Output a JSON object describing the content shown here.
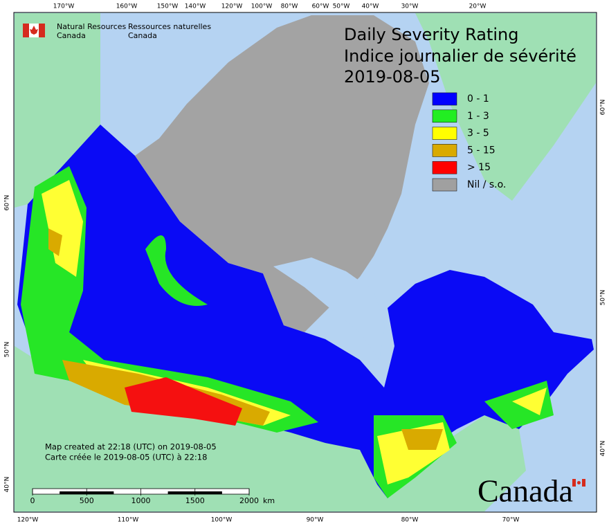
{
  "header": {
    "agency_en": [
      "Natural Resources",
      "Canada"
    ],
    "agency_fr": [
      "Ressources naturelles",
      "Canada"
    ]
  },
  "title": [
    "Daily Severity Rating",
    "Indice journalier de sévérité",
    "2019-08-05"
  ],
  "legend": [
    {
      "label": "0 - 1",
      "color": "#0000ff"
    },
    {
      "label": "1 - 3",
      "color": "#22ee22"
    },
    {
      "label": "3 - 5",
      "color": "#ffff00"
    },
    {
      "label": "5 - 15",
      "color": "#d9aa00"
    },
    {
      "label": "> 15",
      "color": "#ff0000"
    },
    {
      "label": "Nil / s.o.",
      "color": "#a0a0a0"
    }
  ],
  "graticule": {
    "top": [
      "170°W",
      "160°W",
      "150°W",
      "140°W",
      "120°W",
      "100°W",
      "80°W",
      "60°W",
      "50°W",
      "40°W",
      "30°W",
      "20°W"
    ],
    "bottom": [
      "120°W",
      "110°W",
      "100°W",
      "90°W",
      "80°W",
      "70°W"
    ],
    "left": [
      "60°N",
      "50°N",
      "40°N"
    ],
    "right": [
      "60°N",
      "50°N",
      "40°N"
    ]
  },
  "notes": [
    "Map created at 22:18 (UTC) on 2019-08-05",
    "Carte créée le 2019-08-05 (UTC) à 22:18"
  ],
  "scale": {
    "ticks": [
      0,
      500,
      1000,
      1500,
      2000
    ],
    "unit": "km"
  },
  "wordmark": "Canada"
}
